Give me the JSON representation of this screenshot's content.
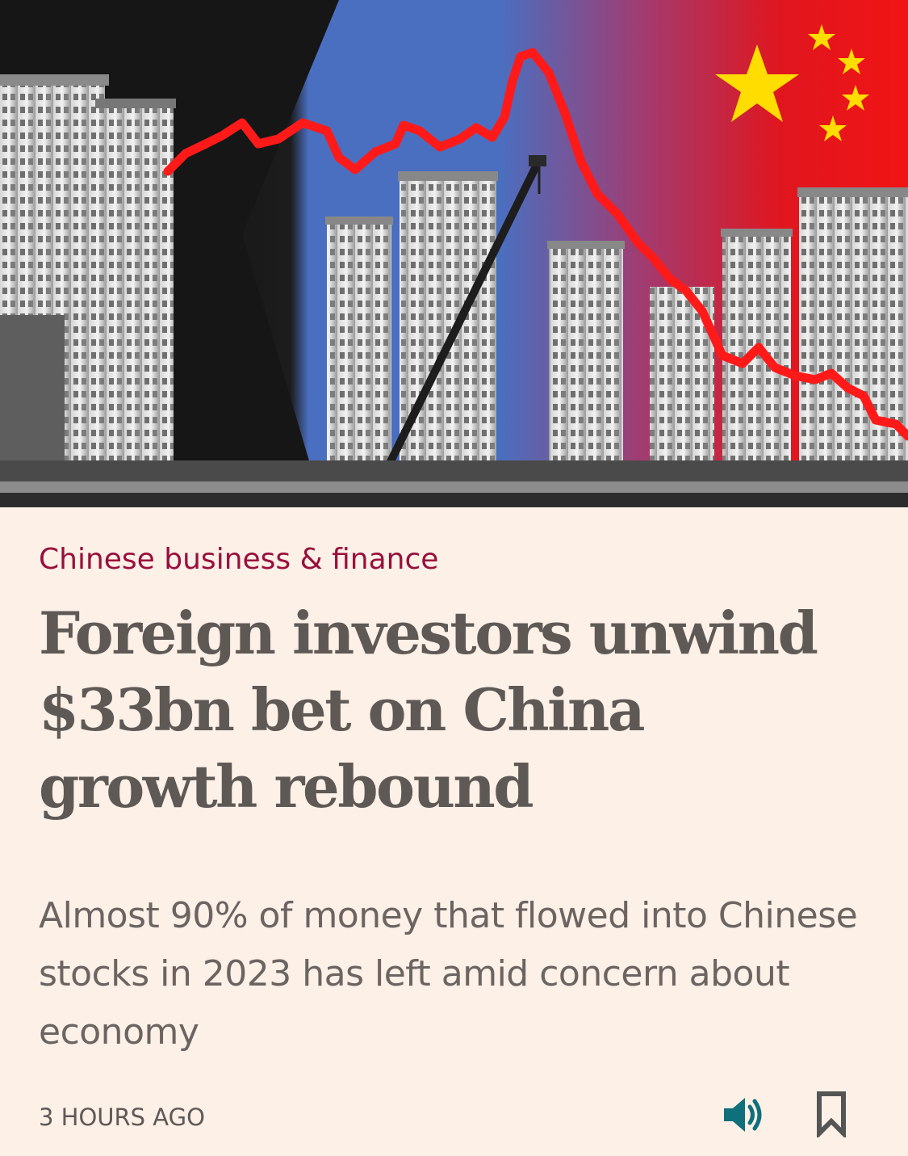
{
  "article": {
    "section": "Chinese business & finance",
    "headline": "Foreign investors unwind $33bn bet on China growth rebound",
    "standfirst": "Almost 90% of money that flowed into Chinese stocks in 2023 has left amid concern about economy",
    "timestamp": "3 HOURS AGO"
  },
  "hero_image": {
    "depicts": [
      "residential-tower-blocks",
      "construction-crane",
      "red-stock-chart-line",
      "china-flag-stars"
    ],
    "colors": {
      "left": "#111111",
      "middle": "#4a6fc0",
      "right": "#e8141b",
      "line": "#ff1a1a",
      "stars": "#ffdd00"
    }
  },
  "actions": {
    "audio_icon": "speaker-icon",
    "save_icon": "bookmark-icon",
    "icon_color_audio": "#0f6f7a",
    "icon_color_save": "#555555"
  }
}
